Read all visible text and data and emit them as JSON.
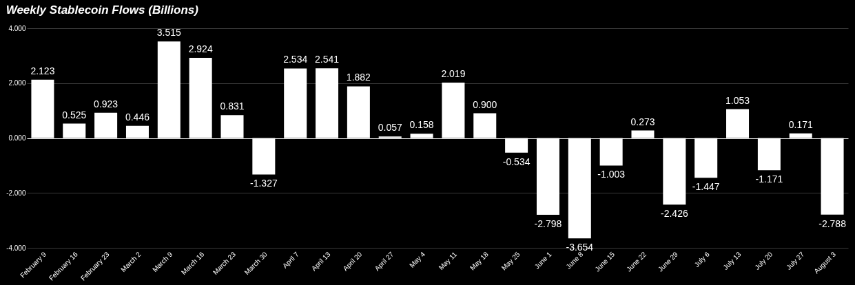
{
  "chart_data": {
    "type": "bar",
    "title": "Weekly Stablecoin Flows (Billions)",
    "categories": [
      "February 9",
      "February 16",
      "February 23",
      "March 2",
      "March 9",
      "March 16",
      "March 23",
      "March 30",
      "April 7",
      "April 13",
      "April 20",
      "April 27",
      "May 4",
      "May 11",
      "May 18",
      "May 25",
      "June 1",
      "June 8",
      "June 15",
      "June 22",
      "June 29",
      "July 6",
      "July 13",
      "July 20",
      "July 27",
      "August 3"
    ],
    "series": [
      {
        "color": "#ffffff",
        "values": [
          2.123,
          0.525,
          0.923,
          0.446,
          3.515,
          2.924,
          0.831,
          -1.327,
          2.534,
          2.541,
          1.882,
          0.057,
          0.158,
          2.019,
          0.9,
          -0.534,
          -2.798,
          -3.654,
          -1.003,
          0.273,
          -2.426,
          -1.447,
          1.053,
          -1.171,
          0.171,
          -2.788
        ],
        "value_labels": [
          "2.123",
          "0.525",
          "0.923",
          "0.446",
          "3.515",
          "2.924",
          "0.831",
          "-1.327",
          "2.534",
          "2.541",
          "1.882",
          "0.057",
          "0.158",
          "2.019",
          "0.900",
          "-0.534",
          "-2.798",
          "-3.654",
          "-1.003",
          "0.273",
          "-2.426",
          "-1.447",
          "1.053",
          "-1.171",
          "0.171",
          "-2.788"
        ]
      }
    ],
    "ylim": [
      -4,
      4
    ],
    "yticks": [
      {
        "value": -4,
        "label": "-4.000"
      },
      {
        "value": -2,
        "label": "-2.000"
      },
      {
        "value": 0,
        "label": "0.000"
      },
      {
        "value": 2,
        "label": "2.000"
      },
      {
        "value": 4,
        "label": "4.000"
      }
    ],
    "grid": "y"
  }
}
